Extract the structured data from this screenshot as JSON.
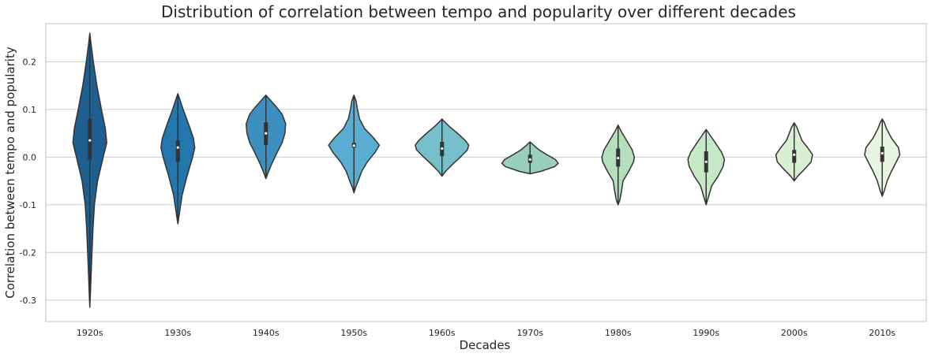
{
  "chart_data": {
    "type": "violin",
    "title": "Distribution of correlation between tempo and popularity over different decades",
    "xlabel": "Decades",
    "ylabel": "Correlation between tempo and popularity",
    "ylim": [
      -0.345,
      0.28
    ],
    "yticks": [
      0.2,
      0.1,
      0.0,
      -0.1,
      -0.2,
      -0.3
    ],
    "ytick_labels": [
      "0.2",
      "0.1",
      "0.0",
      "-0.1",
      "-0.2",
      "-0.3"
    ],
    "grid": "horizontal",
    "categories": [
      "1920s",
      "1930s",
      "1940s",
      "1950s",
      "1960s",
      "1970s",
      "1980s",
      "1990s",
      "2000s",
      "2010s"
    ],
    "colors": [
      "#1f5f8f",
      "#2477ad",
      "#3d8fc0",
      "#5aacd0",
      "#76bfc8",
      "#98cfbf",
      "#b3dfbc",
      "#c6e8c5",
      "#d8efd2",
      "#e7f4df"
    ],
    "violins": [
      {
        "label": "1920s",
        "min": -0.315,
        "max": 0.26,
        "q1": -0.005,
        "median": 0.035,
        "q3": 0.08,
        "profile": [
          [
            -0.315,
            0
          ],
          [
            -0.28,
            0.02
          ],
          [
            -0.22,
            0.05
          ],
          [
            -0.15,
            0.09
          ],
          [
            -0.1,
            0.13
          ],
          [
            -0.05,
            0.22
          ],
          [
            0.0,
            0.38
          ],
          [
            0.03,
            0.48
          ],
          [
            0.06,
            0.44
          ],
          [
            0.1,
            0.33
          ],
          [
            0.15,
            0.2
          ],
          [
            0.2,
            0.1
          ],
          [
            0.24,
            0.03
          ],
          [
            0.26,
            0
          ]
        ]
      },
      {
        "label": "1930s",
        "min": -0.14,
        "max": 0.133,
        "q1": -0.01,
        "median": 0.02,
        "q3": 0.035,
        "profile": [
          [
            -0.14,
            0
          ],
          [
            -0.12,
            0.04
          ],
          [
            -0.08,
            0.12
          ],
          [
            -0.04,
            0.26
          ],
          [
            0.0,
            0.42
          ],
          [
            0.02,
            0.48
          ],
          [
            0.04,
            0.44
          ],
          [
            0.07,
            0.3
          ],
          [
            0.1,
            0.15
          ],
          [
            0.12,
            0.06
          ],
          [
            0.133,
            0
          ]
        ]
      },
      {
        "label": "1940s",
        "min": -0.045,
        "max": 0.13,
        "q1": 0.025,
        "median": 0.05,
        "q3": 0.073,
        "profile": [
          [
            -0.045,
            0
          ],
          [
            -0.035,
            0.05
          ],
          [
            -0.015,
            0.16
          ],
          [
            0.01,
            0.32
          ],
          [
            0.03,
            0.46
          ],
          [
            0.05,
            0.54
          ],
          [
            0.07,
            0.56
          ],
          [
            0.09,
            0.46
          ],
          [
            0.105,
            0.3
          ],
          [
            0.12,
            0.12
          ],
          [
            0.13,
            0
          ]
        ]
      },
      {
        "label": "1950s",
        "min": -0.075,
        "max": 0.13,
        "q1": 0.02,
        "median": 0.024,
        "q3": 0.03,
        "profile": [
          [
            -0.075,
            0
          ],
          [
            -0.065,
            0.04
          ],
          [
            -0.05,
            0.12
          ],
          [
            -0.03,
            0.22
          ],
          [
            -0.01,
            0.38
          ],
          [
            0.01,
            0.6
          ],
          [
            0.025,
            0.72
          ],
          [
            0.04,
            0.56
          ],
          [
            0.06,
            0.3
          ],
          [
            0.08,
            0.16
          ],
          [
            0.1,
            0.1
          ],
          [
            0.118,
            0.06
          ],
          [
            0.13,
            0
          ]
        ]
      },
      {
        "label": "1960s",
        "min": -0.04,
        "max": 0.08,
        "q1": 0.002,
        "median": 0.018,
        "q3": 0.032,
        "profile": [
          [
            -0.04,
            0
          ],
          [
            -0.03,
            0.1
          ],
          [
            -0.015,
            0.3
          ],
          [
            0.0,
            0.52
          ],
          [
            0.015,
            0.72
          ],
          [
            0.025,
            0.76
          ],
          [
            0.035,
            0.66
          ],
          [
            0.05,
            0.44
          ],
          [
            0.065,
            0.2
          ],
          [
            0.075,
            0.06
          ],
          [
            0.08,
            0
          ]
        ]
      },
      {
        "label": "1970s",
        "min": -0.035,
        "max": 0.032,
        "q1": -0.012,
        "median": -0.005,
        "q3": 0.005,
        "profile": [
          [
            -0.035,
            0
          ],
          [
            -0.03,
            0.3
          ],
          [
            -0.02,
            0.7
          ],
          [
            -0.013,
            0.8
          ],
          [
            -0.005,
            0.72
          ],
          [
            0.005,
            0.48
          ],
          [
            0.015,
            0.26
          ],
          [
            0.025,
            0.1
          ],
          [
            0.032,
            0
          ]
        ]
      },
      {
        "label": "1980s",
        "min": -0.1,
        "max": 0.067,
        "q1": -0.02,
        "median": -0.002,
        "q3": 0.018,
        "profile": [
          [
            -0.1,
            0
          ],
          [
            -0.09,
            0.05
          ],
          [
            -0.07,
            0.1
          ],
          [
            -0.05,
            0.14
          ],
          [
            -0.03,
            0.3
          ],
          [
            -0.01,
            0.44
          ],
          [
            0.0,
            0.46
          ],
          [
            0.015,
            0.4
          ],
          [
            0.035,
            0.24
          ],
          [
            0.055,
            0.08
          ],
          [
            0.067,
            0
          ]
        ]
      },
      {
        "label": "1990s",
        "min": -0.1,
        "max": 0.058,
        "q1": -0.032,
        "median": -0.01,
        "q3": 0.012,
        "profile": [
          [
            -0.1,
            0
          ],
          [
            -0.085,
            0.06
          ],
          [
            -0.06,
            0.16
          ],
          [
            -0.04,
            0.34
          ],
          [
            -0.02,
            0.48
          ],
          [
            -0.005,
            0.52
          ],
          [
            0.01,
            0.44
          ],
          [
            0.03,
            0.26
          ],
          [
            0.045,
            0.12
          ],
          [
            0.058,
            0
          ]
        ]
      },
      {
        "label": "2000s",
        "min": -0.05,
        "max": 0.072,
        "q1": -0.012,
        "median": 0.005,
        "q3": 0.015,
        "profile": [
          [
            -0.05,
            0
          ],
          [
            -0.04,
            0.1
          ],
          [
            -0.025,
            0.3
          ],
          [
            -0.01,
            0.48
          ],
          [
            0.005,
            0.52
          ],
          [
            0.02,
            0.38
          ],
          [
            0.035,
            0.22
          ],
          [
            0.05,
            0.14
          ],
          [
            0.062,
            0.08
          ],
          [
            0.072,
            0
          ]
        ]
      },
      {
        "label": "2010s",
        "min": -0.082,
        "max": 0.08,
        "q1": -0.01,
        "median": 0.008,
        "q3": 0.022,
        "profile": [
          [
            -0.082,
            0
          ],
          [
            -0.07,
            0.06
          ],
          [
            -0.05,
            0.14
          ],
          [
            -0.03,
            0.26
          ],
          [
            -0.01,
            0.4
          ],
          [
            0.005,
            0.5
          ],
          [
            0.02,
            0.46
          ],
          [
            0.04,
            0.26
          ],
          [
            0.06,
            0.12
          ],
          [
            0.072,
            0.06
          ],
          [
            0.08,
            0
          ]
        ]
      }
    ]
  }
}
